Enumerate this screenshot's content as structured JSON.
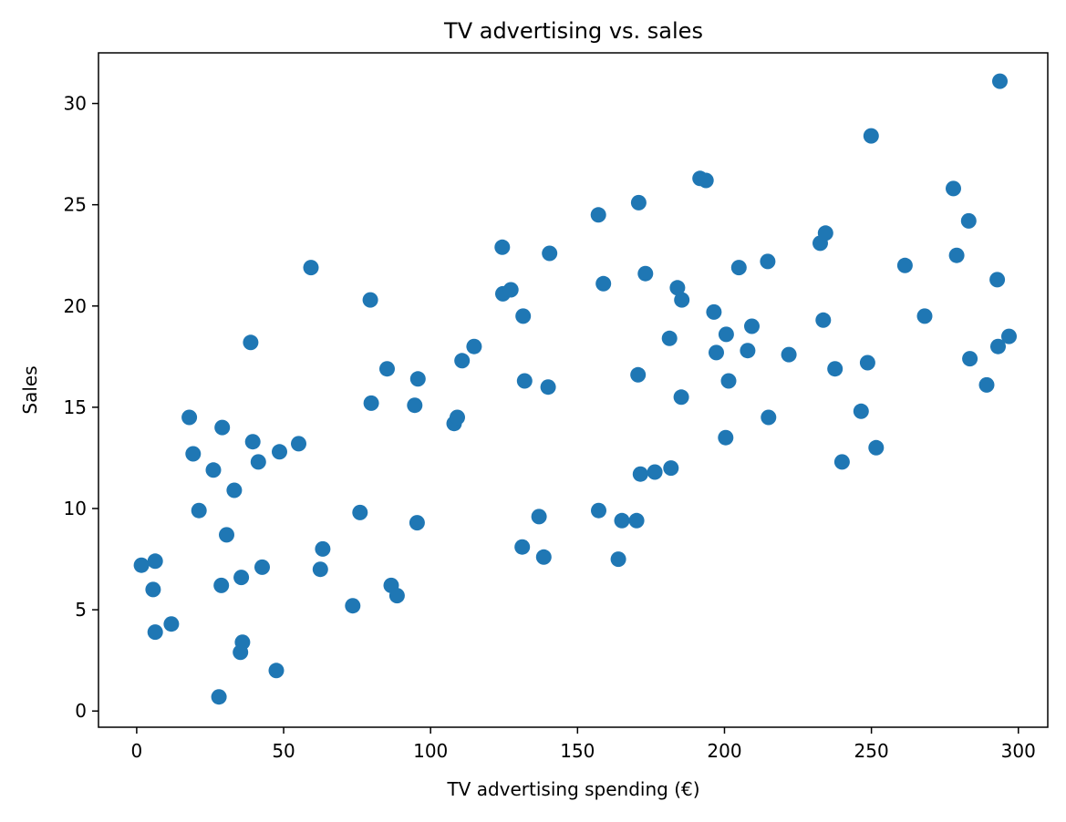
{
  "chart_data": {
    "type": "scatter",
    "title": "TV advertising vs. sales",
    "xlabel": "TV advertising spending (€)",
    "ylabel": "Sales",
    "xlim": [
      -13,
      310
    ],
    "ylim": [
      -0.8,
      32.5
    ],
    "xticks": [
      0,
      50,
      100,
      150,
      200,
      250,
      300
    ],
    "yticks": [
      0,
      5,
      10,
      15,
      20,
      25,
      30
    ],
    "grid": false,
    "marker_color": "#1f77b4",
    "points": [
      [
        1.6,
        7.2
      ],
      [
        5.6,
        6.0
      ],
      [
        6.3,
        7.4
      ],
      [
        6.3,
        3.9
      ],
      [
        11.8,
        4.3
      ],
      [
        17.9,
        14.5
      ],
      [
        19.2,
        12.7
      ],
      [
        21.2,
        9.9
      ],
      [
        26.1,
        11.9
      ],
      [
        28.0,
        0.7
      ],
      [
        28.8,
        6.2
      ],
      [
        29.1,
        14.0
      ],
      [
        30.6,
        8.7
      ],
      [
        33.2,
        10.9
      ],
      [
        35.3,
        2.9
      ],
      [
        35.6,
        6.6
      ],
      [
        36.0,
        3.4
      ],
      [
        38.8,
        18.2
      ],
      [
        39.5,
        13.3
      ],
      [
        41.4,
        12.3
      ],
      [
        42.7,
        7.1
      ],
      [
        47.5,
        2.0
      ],
      [
        48.6,
        12.8
      ],
      [
        55.1,
        13.2
      ],
      [
        59.3,
        21.9
      ],
      [
        62.5,
        7.0
      ],
      [
        63.3,
        8.0
      ],
      [
        73.5,
        5.2
      ],
      [
        76.0,
        9.8
      ],
      [
        79.5,
        20.3
      ],
      [
        79.8,
        15.2
      ],
      [
        85.2,
        16.9
      ],
      [
        86.6,
        6.2
      ],
      [
        88.6,
        5.7
      ],
      [
        94.6,
        15.1
      ],
      [
        95.4,
        9.3
      ],
      [
        95.7,
        16.4
      ],
      [
        108.0,
        14.2
      ],
      [
        109.1,
        14.5
      ],
      [
        110.7,
        17.3
      ],
      [
        114.8,
        18.0
      ],
      [
        124.4,
        22.9
      ],
      [
        124.6,
        20.6
      ],
      [
        127.3,
        20.8
      ],
      [
        131.2,
        8.1
      ],
      [
        131.5,
        19.5
      ],
      [
        132.0,
        16.3
      ],
      [
        136.9,
        9.6
      ],
      [
        138.5,
        7.6
      ],
      [
        140.0,
        16.0
      ],
      [
        140.5,
        22.6
      ],
      [
        157.1,
        24.5
      ],
      [
        157.2,
        9.9
      ],
      [
        158.8,
        21.1
      ],
      [
        163.9,
        7.5
      ],
      [
        165.1,
        9.4
      ],
      [
        170.1,
        9.4
      ],
      [
        170.6,
        16.6
      ],
      [
        170.8,
        25.1
      ],
      [
        171.4,
        11.7
      ],
      [
        173.1,
        21.6
      ],
      [
        176.3,
        11.8
      ],
      [
        181.3,
        18.4
      ],
      [
        181.8,
        12.0
      ],
      [
        184.0,
        20.9
      ],
      [
        185.3,
        15.5
      ],
      [
        185.5,
        20.3
      ],
      [
        191.7,
        26.3
      ],
      [
        193.7,
        26.2
      ],
      [
        196.4,
        19.7
      ],
      [
        197.2,
        17.7
      ],
      [
        200.4,
        13.5
      ],
      [
        200.6,
        18.6
      ],
      [
        201.4,
        16.3
      ],
      [
        204.9,
        21.9
      ],
      [
        207.9,
        17.8
      ],
      [
        209.3,
        19.0
      ],
      [
        214.7,
        22.2
      ],
      [
        215.0,
        14.5
      ],
      [
        221.9,
        17.6
      ],
      [
        232.6,
        23.1
      ],
      [
        233.6,
        19.3
      ],
      [
        234.4,
        23.6
      ],
      [
        237.6,
        16.9
      ],
      [
        240.0,
        12.3
      ],
      [
        246.5,
        14.8
      ],
      [
        248.7,
        17.2
      ],
      [
        249.9,
        28.4
      ],
      [
        251.6,
        13.0
      ],
      [
        261.4,
        22.0
      ],
      [
        268.1,
        19.5
      ],
      [
        277.9,
        25.8
      ],
      [
        279.0,
        22.5
      ],
      [
        283.1,
        24.2
      ],
      [
        283.5,
        17.4
      ],
      [
        289.2,
        16.1
      ],
      [
        292.8,
        21.3
      ],
      [
        293.1,
        18.0
      ],
      [
        293.7,
        31.1
      ],
      [
        296.8,
        18.5
      ]
    ]
  }
}
